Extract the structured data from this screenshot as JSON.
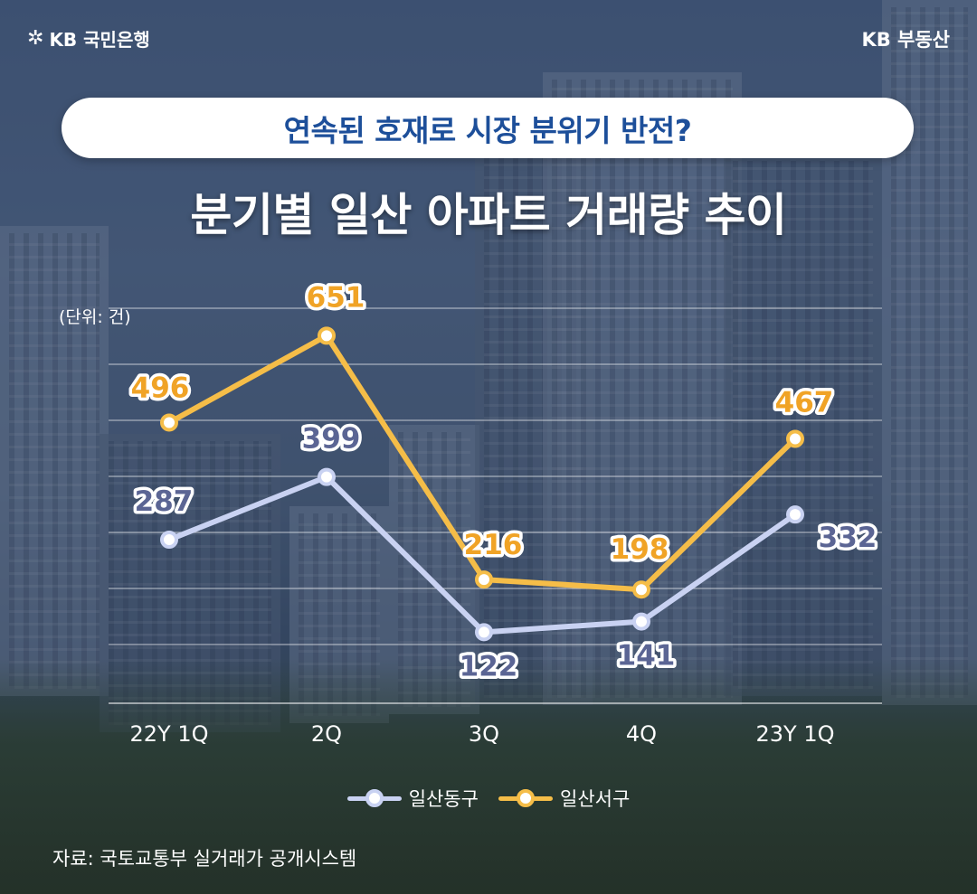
{
  "brand": {
    "left_logo_text": "KB 국민은행",
    "right_logo_text": "KB 부동산"
  },
  "headline": "연속된 호재로 시장 분위기 반전?",
  "unit": "(단위: 건)",
  "source": "자료: 국토교통부 실거래가 공개시스템",
  "colors": {
    "east": "#c9d2f2",
    "east_label": "#5b6594",
    "west": "#f5bd48",
    "west_label": "#f0a326",
    "headline": "#1d4f9a"
  },
  "chart_data": {
    "type": "line",
    "title": "분기별 일산 아파트 거래량 추이",
    "categories": [
      "22Y 1Q",
      "2Q",
      "3Q",
      "4Q",
      "23Y 1Q"
    ],
    "series": [
      {
        "name": "일산동구",
        "values": [
          287,
          399,
          122,
          141,
          332
        ]
      },
      {
        "name": "일산서구",
        "values": [
          496,
          651,
          216,
          198,
          467
        ]
      }
    ],
    "ylim": [
      0,
      750
    ],
    "grid": true,
    "legend": "bottom-center"
  }
}
